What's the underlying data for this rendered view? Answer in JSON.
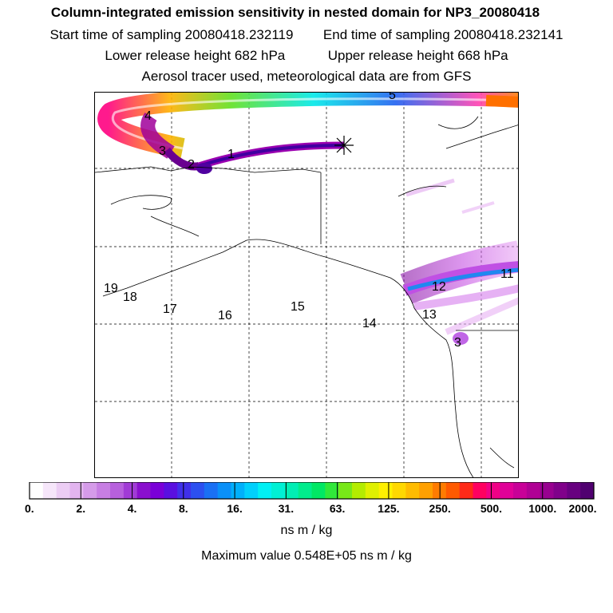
{
  "header": {
    "title": "Column-integrated emission sensitivity in nested domain for NP3_20080418",
    "start_label": "Start time of sampling 20080418.232119",
    "end_label": "End time of sampling 20080418.232141",
    "lower_label": "Lower release height  682 hPa",
    "upper_label": "Upper release height  668 hPa",
    "info": "Aerosol tracer used, meteorological data are from GFS"
  },
  "map": {
    "day_labels": [
      "1",
      "2",
      "3",
      "4",
      "5",
      "11",
      "12",
      "13",
      "14",
      "15",
      "16",
      "17",
      "18",
      "19",
      "3"
    ]
  },
  "colorbar": {
    "tick_labels": [
      "0.",
      "2.",
      "4.",
      "8.",
      "16.",
      "31.",
      "63.",
      "125.",
      "250.",
      "500.",
      "1000.",
      "2000."
    ],
    "colors": [
      "#ffffff",
      "#f6e6fa",
      "#eccdf4",
      "#e2b4ef",
      "#d59be9",
      "#c77ee3",
      "#b760dd",
      "#a13bd6",
      "#8a0fce",
      "#7a00d8",
      "#5a10e0",
      "#4030ea",
      "#2c50f0",
      "#1a70f4",
      "#0a90f8",
      "#00b0fb",
      "#00d0fc",
      "#00f0f4",
      "#00f0d4",
      "#00eeb4",
      "#00ec8c",
      "#00e864",
      "#30e83a",
      "#78e818",
      "#b4ec00",
      "#e0f000",
      "#fff000",
      "#ffd800",
      "#ffbc00",
      "#ffa000",
      "#ff7c00",
      "#ff5a00",
      "#ff2a18",
      "#ff0060",
      "#f00086",
      "#e00098",
      "#c80098",
      "#b00094",
      "#980090",
      "#80008a",
      "#680080",
      "#500070"
    ],
    "unit": "ns m / kg"
  },
  "footer": {
    "max_value": "Maximum value  0.548E+05 ns m / kg"
  }
}
